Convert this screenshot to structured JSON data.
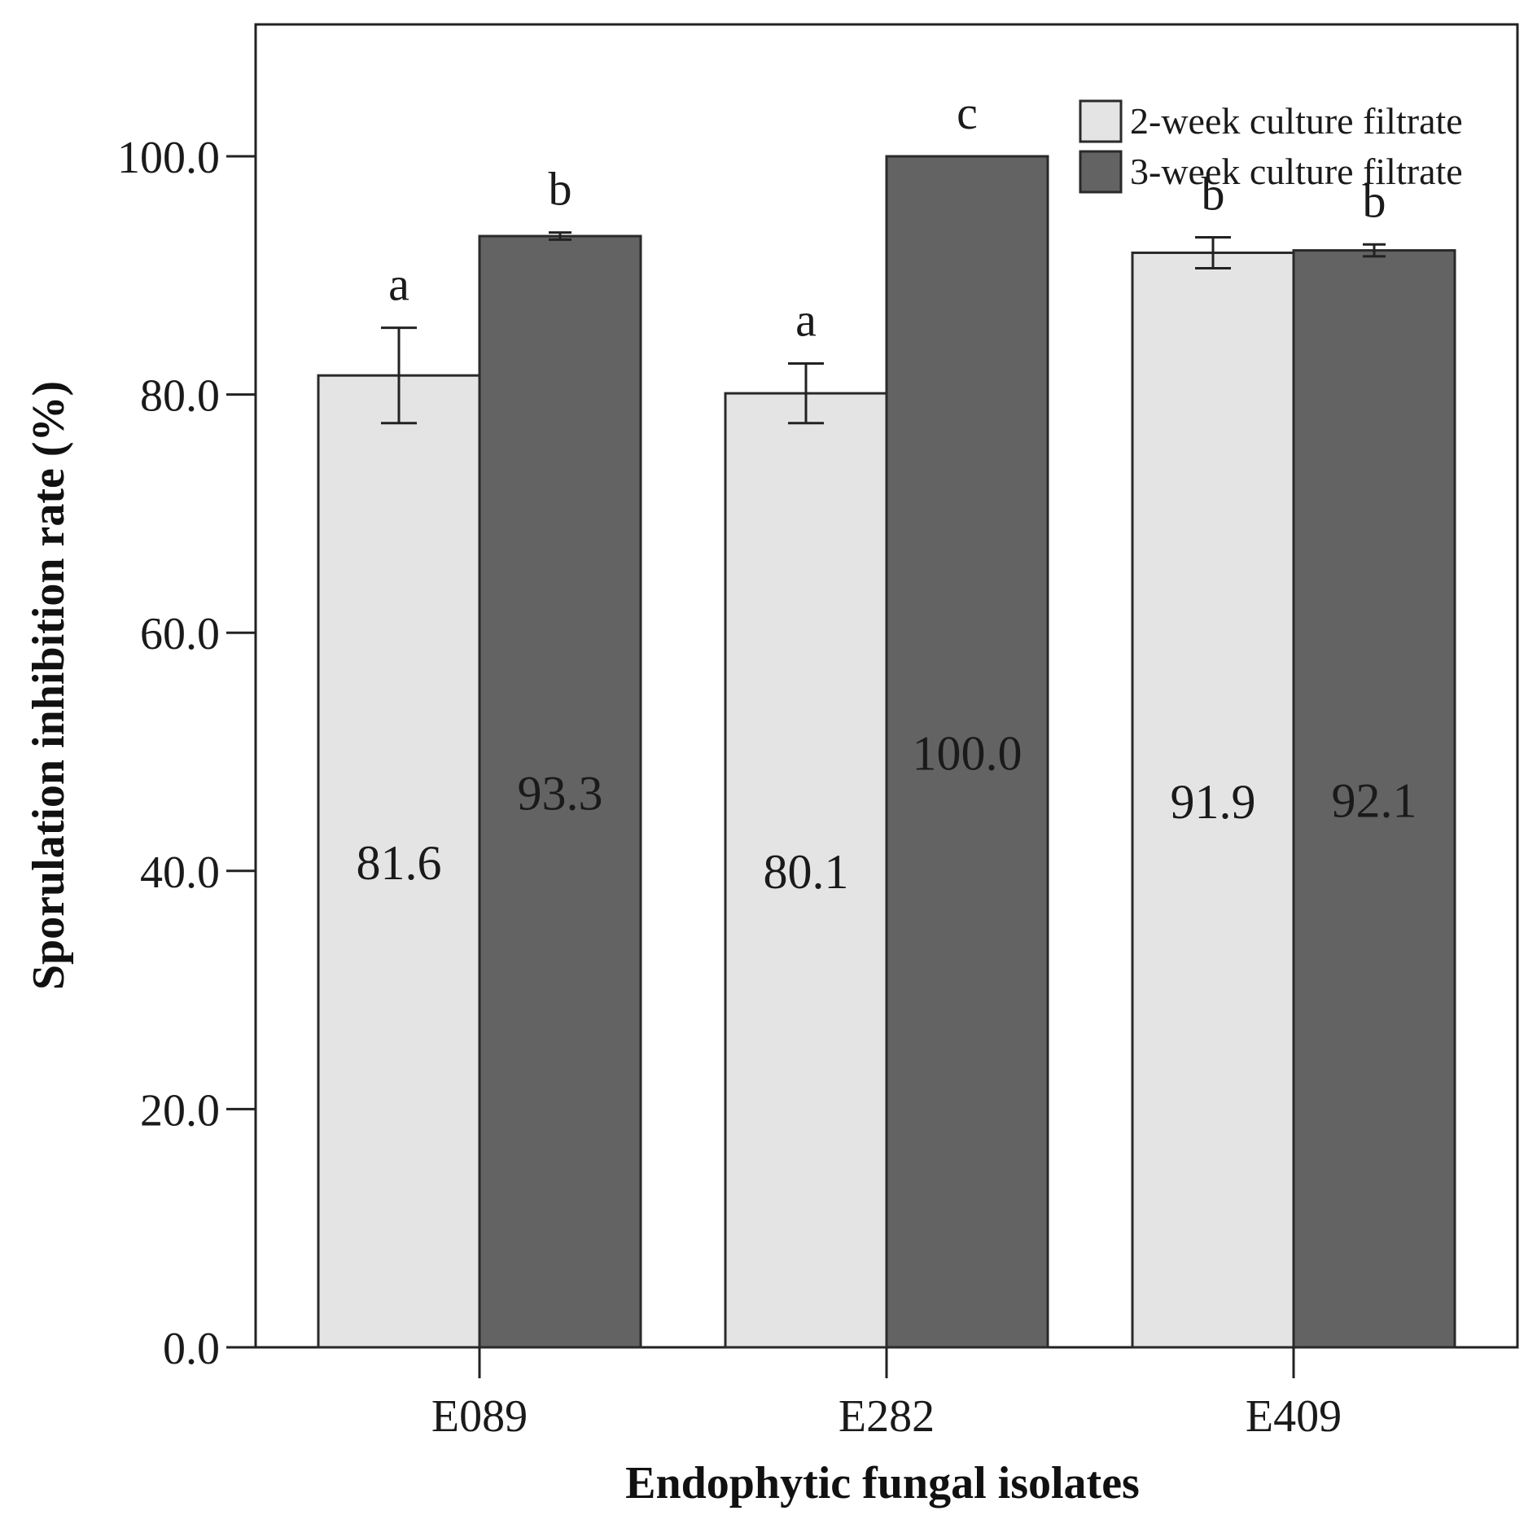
{
  "chart_data": {
    "type": "bar",
    "xlabel": "Endophytic fungal isolates",
    "ylabel": "Sporulation inhibition rate (%)",
    "ylim": [
      0,
      111
    ],
    "yticks": [
      0,
      20,
      40,
      60,
      80,
      100
    ],
    "ytick_labels": [
      "0.0",
      "20.0",
      "40.0",
      "60.0",
      "80.0",
      "100.0"
    ],
    "categories": [
      "E089",
      "E282",
      "E409"
    ],
    "series": [
      {
        "name": "2-week culture filtrate",
        "color": "#e4e4e4",
        "values": [
          81.6,
          80.1,
          91.9
        ],
        "value_labels": [
          "81.6",
          "80.1",
          "91.9"
        ],
        "error": [
          4.0,
          2.5,
          1.3
        ],
        "letters": [
          "a",
          "a",
          "b"
        ]
      },
      {
        "name": "3-week culture filtrate",
        "color": "#636363",
        "values": [
          93.3,
          100.0,
          92.1
        ],
        "value_labels": [
          "93.3",
          "100.0",
          "92.1"
        ],
        "error": [
          0.3,
          0.0,
          0.5
        ],
        "letters": [
          "b",
          "c",
          "b"
        ]
      }
    ],
    "legend": "top-right"
  }
}
